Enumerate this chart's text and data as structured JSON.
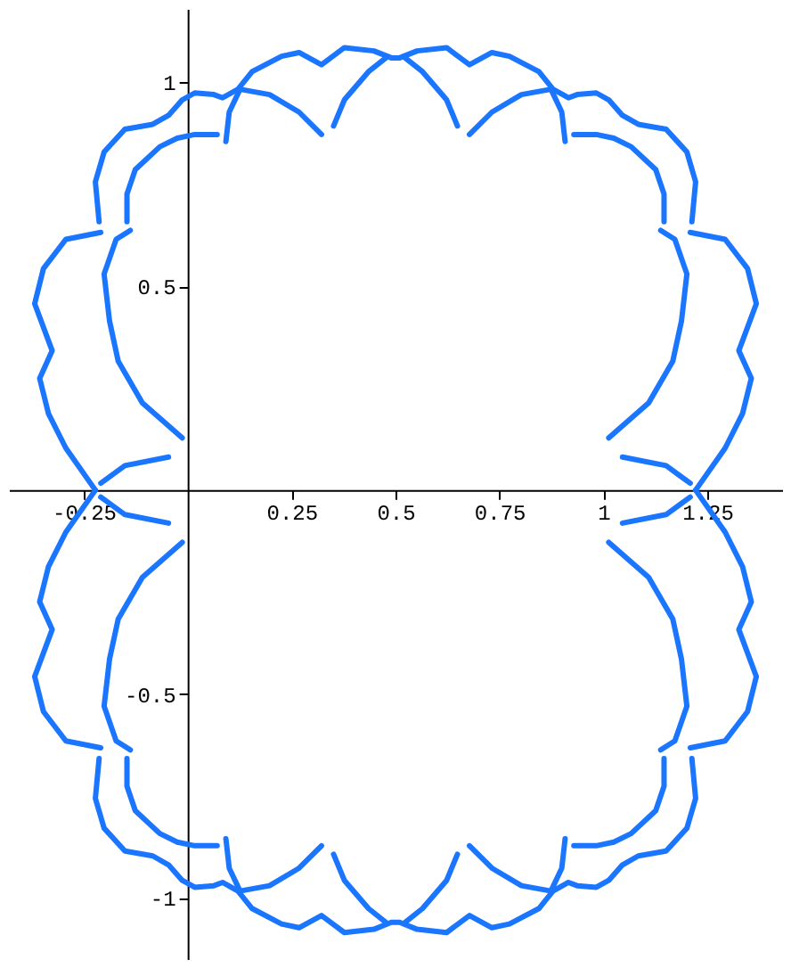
{
  "chart_data": {
    "type": "line",
    "xlim": [
      -0.43,
      1.43
    ],
    "ylim": [
      -1.15,
      1.18
    ],
    "xticks": [
      -0.25,
      0.25,
      0.5,
      0.75,
      1,
      1.25
    ],
    "yticks": [
      -1,
      -0.5,
      0.5,
      1
    ],
    "grid": false,
    "marker": "none",
    "line_style": "solid",
    "series": [
      {
        "color": "#1a75ff",
        "x": [
          -0.222,
          -0.293,
          -0.335,
          -0.356,
          -0.326,
          -0.368,
          -0.347,
          -0.293,
          -0.209
        ],
        "values": [
          0,
          0.103,
          0.188,
          0.274,
          0.342,
          0.457,
          0.543,
          0.615,
          0.632
        ]
      },
      {
        "color": "#1a75ff",
        "x": [
          1.222,
          1.293,
          1.335,
          1.356,
          1.326,
          1.368,
          1.347,
          1.293,
          1.209
        ],
        "values": [
          0,
          0.103,
          0.188,
          0.274,
          0.342,
          0.457,
          0.543,
          0.615,
          0.632
        ]
      },
      {
        "color": "#1a75ff",
        "x": [
          -0.213,
          -0.222,
          -0.201,
          -0.151,
          -0.084,
          -0.046,
          -0.013,
          0.017,
          0.063,
          0.084,
          0.121,
          0.155,
          0.226,
          0.268,
          0.322,
          0.377,
          0.448,
          0.49,
          0.51,
          0.552,
          0.623,
          0.678,
          0.732,
          0.774,
          0.845,
          0.879,
          0.916,
          0.937,
          0.983,
          1.013,
          1.046,
          1.084,
          1.151,
          1.201,
          1.222,
          1.213
        ],
        "values": [
          0.658,
          0.756,
          0.829,
          0.885,
          0.897,
          0.919,
          0.957,
          0.974,
          0.97,
          0.962,
          0.983,
          1.026,
          1.064,
          1.073,
          1.043,
          1.085,
          1.077,
          1.06,
          1.06,
          1.077,
          1.085,
          1.043,
          1.073,
          1.064,
          1.026,
          0.983,
          0.962,
          0.97,
          0.974,
          0.957,
          0.919,
          0.897,
          0.885,
          0.829,
          0.756,
          0.658
        ]
      },
      {
        "color": "#1a75ff",
        "x": [
          -0.013,
          -0.109,
          -0.167,
          -0.188,
          -0.201,
          -0.172,
          -0.138
        ],
        "values": [
          0.128,
          0.214,
          0.316,
          0.415,
          0.53,
          0.615,
          0.637
        ]
      },
      {
        "color": "#1a75ff",
        "x": [
          1.013,
          1.109,
          1.167,
          1.188,
          1.201,
          1.172,
          1.138
        ],
        "values": [
          0.128,
          0.214,
          0.316,
          0.415,
          0.53,
          0.615,
          0.637
        ]
      },
      {
        "color": "#1a75ff",
        "x": [
          -0.146,
          -0.146,
          -0.126,
          -0.067,
          -0.025,
          0.017,
          0.071
        ],
        "values": [
          0.658,
          0.726,
          0.786,
          0.842,
          0.863,
          0.872,
          0.872
        ]
      },
      {
        "color": "#1a75ff",
        "x": [
          1.146,
          1.146,
          1.126,
          1.067,
          1.025,
          0.983,
          0.929
        ],
        "values": [
          0.658,
          0.726,
          0.786,
          0.842,
          0.863,
          0.872,
          0.872
        ]
      },
      {
        "color": "#1a75ff",
        "x": [
          0.092,
          0.1,
          0.126,
          0.197,
          0.268,
          0.322
        ],
        "values": [
          0.855,
          0.927,
          0.983,
          0.97,
          0.927,
          0.872
        ]
      },
      {
        "color": "#1a75ff",
        "x": [
          0.908,
          0.9,
          0.874,
          0.803,
          0.732,
          0.678
        ],
        "values": [
          0.855,
          0.927,
          0.983,
          0.97,
          0.927,
          0.872
        ]
      },
      {
        "color": "#1a75ff",
        "x": [
          0.351,
          0.377,
          0.435,
          0.477
        ],
        "values": [
          0.893,
          0.957,
          1.026,
          1.06
        ]
      },
      {
        "color": "#1a75ff",
        "x": [
          0.649,
          0.623,
          0.565,
          0.523
        ],
        "values": [
          0.893,
          0.957,
          1.026,
          1.06
        ]
      },
      {
        "color": "#1a75ff",
        "x": [
          -0.209,
          -0.151,
          -0.046
        ],
        "values": [
          0.017,
          0.06,
          0.081
        ]
      },
      {
        "color": "#1a75ff",
        "x": [
          1.209,
          1.151,
          1.046
        ],
        "values": [
          0.017,
          0.06,
          0.081
        ]
      },
      {
        "color": "#1a75ff",
        "x": [
          -0.222,
          -0.293,
          -0.335,
          -0.356,
          -0.326,
          -0.368,
          -0.347,
          -0.293,
          -0.209
        ],
        "values": [
          0,
          -0.103,
          -0.188,
          -0.274,
          -0.342,
          -0.457,
          -0.543,
          -0.615,
          -0.632
        ]
      },
      {
        "color": "#1a75ff",
        "x": [
          1.222,
          1.293,
          1.335,
          1.356,
          1.326,
          1.368,
          1.347,
          1.293,
          1.209
        ],
        "values": [
          0,
          -0.103,
          -0.188,
          -0.274,
          -0.342,
          -0.457,
          -0.543,
          -0.615,
          -0.632
        ]
      },
      {
        "color": "#1a75ff",
        "x": [
          -0.213,
          -0.222,
          -0.201,
          -0.151,
          -0.084,
          -0.046,
          -0.013,
          0.017,
          0.063,
          0.084,
          0.121,
          0.155,
          0.226,
          0.268,
          0.322,
          0.377,
          0.448,
          0.49,
          0.51,
          0.552,
          0.623,
          0.678,
          0.732,
          0.774,
          0.845,
          0.879,
          0.916,
          0.937,
          0.983,
          1.013,
          1.046,
          1.084,
          1.151,
          1.201,
          1.222,
          1.213
        ],
        "values": [
          -0.658,
          -0.756,
          -0.829,
          -0.885,
          -0.897,
          -0.919,
          -0.957,
          -0.974,
          -0.97,
          -0.962,
          -0.983,
          -1.026,
          -1.064,
          -1.073,
          -1.043,
          -1.085,
          -1.077,
          -1.06,
          -1.06,
          -1.077,
          -1.085,
          -1.043,
          -1.073,
          -1.064,
          -1.026,
          -0.983,
          -0.962,
          -0.97,
          -0.974,
          -0.957,
          -0.919,
          -0.897,
          -0.885,
          -0.829,
          -0.756,
          -0.658
        ]
      },
      {
        "color": "#1a75ff",
        "x": [
          -0.013,
          -0.109,
          -0.167,
          -0.188,
          -0.201,
          -0.172,
          -0.138
        ],
        "values": [
          -0.128,
          -0.214,
          -0.316,
          -0.415,
          -0.53,
          -0.615,
          -0.637
        ]
      },
      {
        "color": "#1a75ff",
        "x": [
          1.013,
          1.109,
          1.167,
          1.188,
          1.201,
          1.172,
          1.138
        ],
        "values": [
          -0.128,
          -0.214,
          -0.316,
          -0.415,
          -0.53,
          -0.615,
          -0.637
        ]
      },
      {
        "color": "#1a75ff",
        "x": [
          -0.146,
          -0.146,
          -0.126,
          -0.067,
          -0.025,
          0.017,
          0.071
        ],
        "values": [
          -0.658,
          -0.726,
          -0.786,
          -0.842,
          -0.863,
          -0.872,
          -0.872
        ]
      },
      {
        "color": "#1a75ff",
        "x": [
          1.146,
          1.146,
          1.126,
          1.067,
          1.025,
          0.983,
          0.929
        ],
        "values": [
          -0.658,
          -0.726,
          -0.786,
          -0.842,
          -0.863,
          -0.872,
          -0.872
        ]
      },
      {
        "color": "#1a75ff",
        "x": [
          0.092,
          0.1,
          0.126,
          0.197,
          0.268,
          0.322
        ],
        "values": [
          -0.855,
          -0.927,
          -0.983,
          -0.97,
          -0.927,
          -0.872
        ]
      },
      {
        "color": "#1a75ff",
        "x": [
          0.908,
          0.9,
          0.874,
          0.803,
          0.732,
          0.678
        ],
        "values": [
          -0.855,
          -0.927,
          -0.983,
          -0.97,
          -0.927,
          -0.872
        ]
      },
      {
        "color": "#1a75ff",
        "x": [
          0.351,
          0.377,
          0.435,
          0.477
        ],
        "values": [
          -0.893,
          -0.957,
          -1.026,
          -1.06
        ]
      },
      {
        "color": "#1a75ff",
        "x": [
          0.649,
          0.623,
          0.565,
          0.523
        ],
        "values": [
          -0.893,
          -0.957,
          -1.026,
          -1.06
        ]
      },
      {
        "color": "#1a75ff",
        "x": [
          -0.209,
          -0.151,
          -0.046
        ],
        "values": [
          -0.017,
          -0.06,
          -0.081
        ]
      },
      {
        "color": "#1a75ff",
        "x": [
          1.209,
          1.151,
          1.046
        ],
        "values": [
          -0.017,
          -0.06,
          -0.081
        ]
      }
    ]
  }
}
